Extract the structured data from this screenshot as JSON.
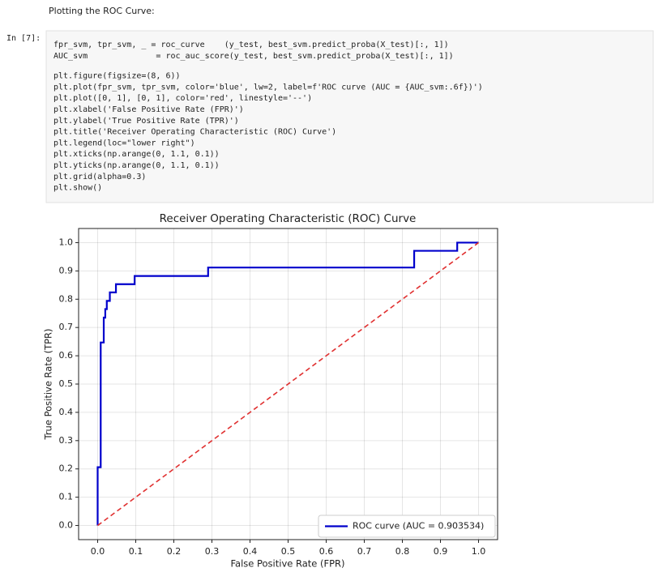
{
  "markdown": {
    "text": "Plotting the ROC Curve:"
  },
  "cell": {
    "prompt": "In [7]:",
    "code_blocks": [
      [
        "fpr_svm, tpr_svm, _ = roc_curve    (y_test, best_svm.predict_proba(X_test)[:, 1])",
        "AUC_svm              = roc_auc_score(y_test, best_svm.predict_proba(X_test)[:, 1])"
      ],
      [
        "plt.figure(figsize=(8, 6))",
        "plt.plot(fpr_svm, tpr_svm, color='blue', lw=2, label=f'ROC curve (AUC = {AUC_svm:.6f})')",
        "plt.plot([0, 1], [0, 1], color='red', linestyle='--')",
        "plt.xlabel('False Positive Rate (FPR)')",
        "plt.ylabel('True Positive Rate (TPR)')",
        "plt.title('Receiver Operating Characteristic (ROC) Curve')",
        "plt.legend(loc=\"lower right\")",
        "plt.xticks(np.arange(0, 1.1, 0.1))",
        "plt.yticks(np.arange(0, 1.1, 0.1))",
        "plt.grid(alpha=0.3)",
        "plt.show()"
      ]
    ]
  },
  "chart_data": {
    "type": "line",
    "title": "Receiver Operating Characteristic (ROC) Curve",
    "x_label": "False Positive Rate (FPR)",
    "y_label": "True Positive Rate (TPR)",
    "series": [
      {
        "name": "ROC curve (AUC = 0.903534)",
        "color": "#0000cc",
        "line_style": "solid",
        "x": [
          0,
          0,
          0.008,
          0.008,
          0.016,
          0.016,
          0.02,
          0.02,
          0.024,
          0.024,
          0.032,
          0.032,
          0.048,
          0.048,
          0.097,
          0.097,
          0.29,
          0.29,
          0.831,
          0.831,
          0.944,
          0.944,
          1.0
        ],
        "values": [
          0,
          0.206,
          0.206,
          0.647,
          0.647,
          0.735,
          0.735,
          0.765,
          0.765,
          0.794,
          0.794,
          0.824,
          0.824,
          0.853,
          0.853,
          0.882,
          0.882,
          0.912,
          0.912,
          0.971,
          0.971,
          1.0,
          1.0
        ]
      },
      {
        "color": "#e03030",
        "line_style": "dashed",
        "x": [
          0,
          1
        ],
        "values": [
          0,
          1
        ]
      }
    ],
    "xlim": [
      -0.05,
      1.05
    ],
    "ylim": [
      -0.05,
      1.05
    ],
    "xticks": [
      {
        "value": 0,
        "label": "0.0"
      },
      0.1,
      0.2,
      0.3,
      0.4,
      0.5,
      0.6,
      0.7,
      0.8,
      0.9,
      {
        "value": 1,
        "label": "1.0"
      }
    ],
    "yticks": [
      {
        "value": 0,
        "label": "0.0"
      },
      0.1,
      0.2,
      0.3,
      0.4,
      0.5,
      0.6,
      0.7,
      0.8,
      0.9,
      {
        "value": 1,
        "label": "1.0"
      }
    ],
    "grid": true,
    "legend": "lower right"
  }
}
